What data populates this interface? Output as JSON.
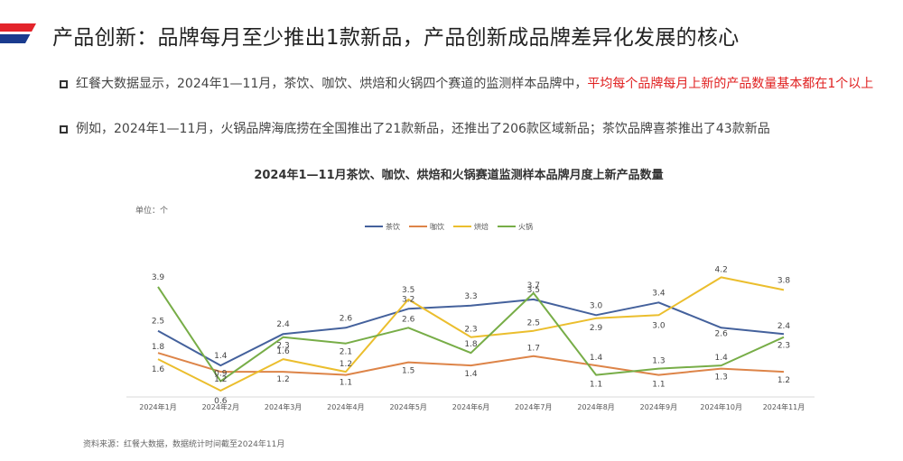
{
  "header": {
    "title": "产品创新：品牌每月至少推出1款新品，产品创新成品牌差异化发展的核心",
    "accent_colors": [
      "#e3242b",
      "#1a3b8e"
    ]
  },
  "bullets": [
    {
      "text_plain": "红餐大数据显示，2024年1—11月，茶饮、咖饮、烘焙和火锅四个赛道的监测样本品牌中，",
      "text_highlight": "平均每个品牌每月上新的产品数量基本都在1个以上"
    },
    {
      "text_plain": "例如，2024年1—11月，火锅品牌海底捞在全国推出了21款新品，还推出了206款区域新品；茶饮品牌喜茶推出了43款新品",
      "text_highlight": ""
    }
  ],
  "chart_data": {
    "type": "line",
    "title": "2024年1—11月茶饮、咖饮、烘焙和火锅赛道监测样本品牌月度上新产品数量",
    "ylabel": "单位：个",
    "categories": [
      "2024年1月",
      "2024年2月",
      "2024年3月",
      "2024年4月",
      "2024年5月",
      "2024年6月",
      "2024年7月",
      "2024年8月",
      "2024年9月",
      "2024年10月",
      "2024年11月"
    ],
    "ylim": [
      0.4,
      4.7
    ],
    "grid": false,
    "legend_position": "top-center",
    "series": [
      {
        "name": "茶饮",
        "color": "#44619c",
        "values": [
          2.5,
          1.4,
          2.4,
          2.6,
          3.2,
          3.3,
          3.5,
          3.0,
          3.4,
          2.6,
          2.4
        ]
      },
      {
        "name": "咖饮",
        "color": "#dd8448",
        "values": [
          1.8,
          1.2,
          1.2,
          1.1,
          1.5,
          1.4,
          1.7,
          1.4,
          1.1,
          1.3,
          1.2
        ]
      },
      {
        "name": "烘焙",
        "color": "#ebbe2d",
        "values": [
          1.6,
          0.6,
          1.6,
          1.2,
          3.5,
          2.3,
          2.5,
          2.9,
          3.0,
          4.2,
          3.8
        ]
      },
      {
        "name": "火锅",
        "color": "#77ad47",
        "values": [
          3.9,
          0.9,
          2.3,
          2.1,
          2.6,
          1.8,
          3.7,
          1.1,
          1.3,
          1.4,
          2.3
        ]
      }
    ]
  },
  "source": "资料来源：红餐大数据，数据统计时间截至2024年11月"
}
